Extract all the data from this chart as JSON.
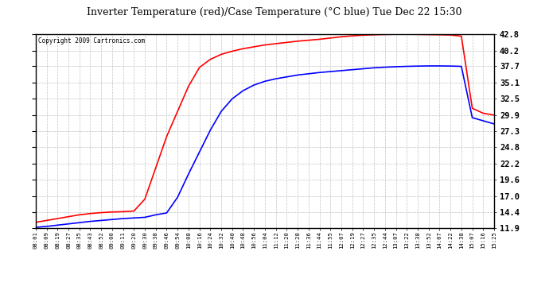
{
  "title": "Inverter Temperature (red)/Case Temperature (°C blue) Tue Dec 22 15:30",
  "copyright": "Copyright 2009 Cartronics.com",
  "yticks": [
    11.9,
    14.4,
    17.0,
    19.6,
    22.2,
    24.8,
    27.3,
    29.9,
    32.5,
    35.1,
    37.7,
    40.2,
    42.8
  ],
  "xtick_labels": [
    "08:01",
    "08:09",
    "08:19",
    "08:27",
    "08:35",
    "08:43",
    "08:52",
    "09:00",
    "09:11",
    "09:20",
    "09:30",
    "09:38",
    "09:46",
    "09:54",
    "10:08",
    "10:16",
    "10:24",
    "10:32",
    "10:40",
    "10:48",
    "10:56",
    "11:04",
    "11:12",
    "11:20",
    "11:28",
    "11:36",
    "11:44",
    "11:55",
    "12:07",
    "12:19",
    "12:27",
    "12:35",
    "12:44",
    "13:07",
    "13:22",
    "13:38",
    "13:52",
    "14:07",
    "14:22",
    "14:38",
    "15:07",
    "15:16",
    "15:25"
  ],
  "ymin": 11.9,
  "ymax": 42.8,
  "bg_color": "#ffffff",
  "plot_bg_color": "#ffffff",
  "grid_color": "#bbbbbb",
  "red_color": "#ff0000",
  "blue_color": "#0000ff",
  "red_data_y": [
    12.8,
    13.1,
    13.4,
    13.7,
    14.0,
    14.2,
    14.35,
    14.45,
    14.5,
    14.6,
    16.5,
    21.5,
    26.5,
    30.5,
    34.5,
    37.5,
    38.8,
    39.6,
    40.1,
    40.5,
    40.8,
    41.1,
    41.3,
    41.5,
    41.7,
    41.85,
    42.0,
    42.2,
    42.4,
    42.55,
    42.65,
    42.72,
    42.77,
    42.8,
    42.8,
    42.78,
    42.75,
    42.72,
    42.68,
    42.5,
    31.0,
    30.2,
    29.9
  ],
  "blue_data_y": [
    12.0,
    12.15,
    12.35,
    12.55,
    12.75,
    12.95,
    13.1,
    13.25,
    13.4,
    13.5,
    13.6,
    14.0,
    14.3,
    16.8,
    20.5,
    24.0,
    27.5,
    30.5,
    32.5,
    33.8,
    34.7,
    35.3,
    35.7,
    36.0,
    36.3,
    36.5,
    36.7,
    36.85,
    37.0,
    37.15,
    37.3,
    37.45,
    37.55,
    37.62,
    37.68,
    37.72,
    37.75,
    37.75,
    37.73,
    37.68,
    29.5,
    29.0,
    28.5
  ]
}
